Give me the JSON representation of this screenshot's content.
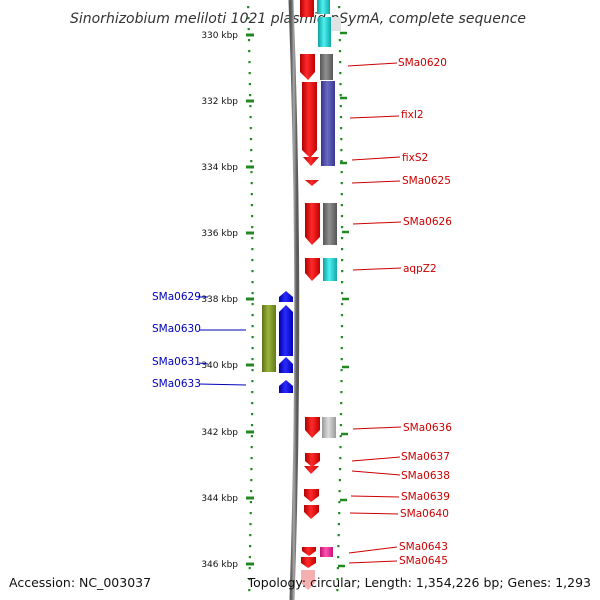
{
  "title": "Sinorhizobium meliloti 1021 plasmid pSymA, complete sequence",
  "accession_text": "Accession: NC_003037",
  "topology_text": "Topology: circular; Length: 1,354,226 bp; Genes: 1,293",
  "axis_ticks": [
    {
      "label": "330 kbp",
      "kbp": 330
    },
    {
      "label": "332 kbp",
      "kbp": 332
    },
    {
      "label": "334 kbp",
      "kbp": 334
    },
    {
      "label": "336 kbp",
      "kbp": 336
    },
    {
      "label": "338 kbp",
      "kbp": 338
    },
    {
      "label": "340 kbp",
      "kbp": 340
    },
    {
      "label": "342 kbp",
      "kbp": 342
    },
    {
      "label": "344 kbp",
      "kbp": 344
    },
    {
      "label": "346 kbp",
      "kbp": 346
    }
  ],
  "reverse_strand_genes": [
    {
      "label": "SMa0629",
      "start_kbp": 338.0,
      "end_kbp": 338.1
    },
    {
      "label": "SMa0630",
      "start_kbp": 338.2,
      "end_kbp": 339.7
    },
    {
      "label": "SMa0631",
      "start_kbp": 339.8,
      "end_kbp": 340.2
    },
    {
      "label": "SMa0633",
      "start_kbp": 340.4,
      "end_kbp": 340.7
    }
  ],
  "forward_strand_genes": [
    {
      "label": "SMa0620",
      "start_kbp": 330.8,
      "end_kbp": 331.5
    },
    {
      "label": "fixI2",
      "start_kbp": 331.5,
      "end_kbp": 333.7
    },
    {
      "label": "fixS2",
      "start_kbp": 333.8,
      "end_kbp": 333.9
    },
    {
      "label": "SMa0625",
      "start_kbp": 334.4,
      "end_kbp": 334.5
    },
    {
      "label": "SMa0626",
      "start_kbp": 335.1,
      "end_kbp": 336.3
    },
    {
      "label": "aqpZ2",
      "start_kbp": 336.7,
      "end_kbp": 337.3
    },
    {
      "label": "SMa0636",
      "start_kbp": 342.6,
      "end_kbp": 343.2
    },
    {
      "label": "SMa0637",
      "start_kbp": 343.3,
      "end_kbp": 343.5
    },
    {
      "label": "SMa0638",
      "start_kbp": 343.6,
      "end_kbp": 343.8
    },
    {
      "label": "SMa0639",
      "start_kbp": 344.2,
      "end_kbp": 344.5
    },
    {
      "label": "SMa0640",
      "start_kbp": 344.6,
      "end_kbp": 344.9
    },
    {
      "label": "SMa0643",
      "start_kbp": 345.6,
      "end_kbp": 345.8
    },
    {
      "label": "SMa0645",
      "start_kbp": 345.8,
      "end_kbp": 346.1
    }
  ],
  "colors": {
    "forward_cds": "#ee1111",
    "reverse_cds": "#1111ee",
    "forward_label": "#cc0000",
    "reverse_label": "#0000bb",
    "tick_marks": "#228822",
    "backbone": "#888888",
    "go_cog_olive": "#7f9a2a",
    "cog_blue": "#4a4aa0",
    "cog_gray": "#777777",
    "cog_light_gray": "#bbbbbb",
    "cog_cyan": "#22c8c8",
    "cog_magenta": "#e8208c"
  }
}
